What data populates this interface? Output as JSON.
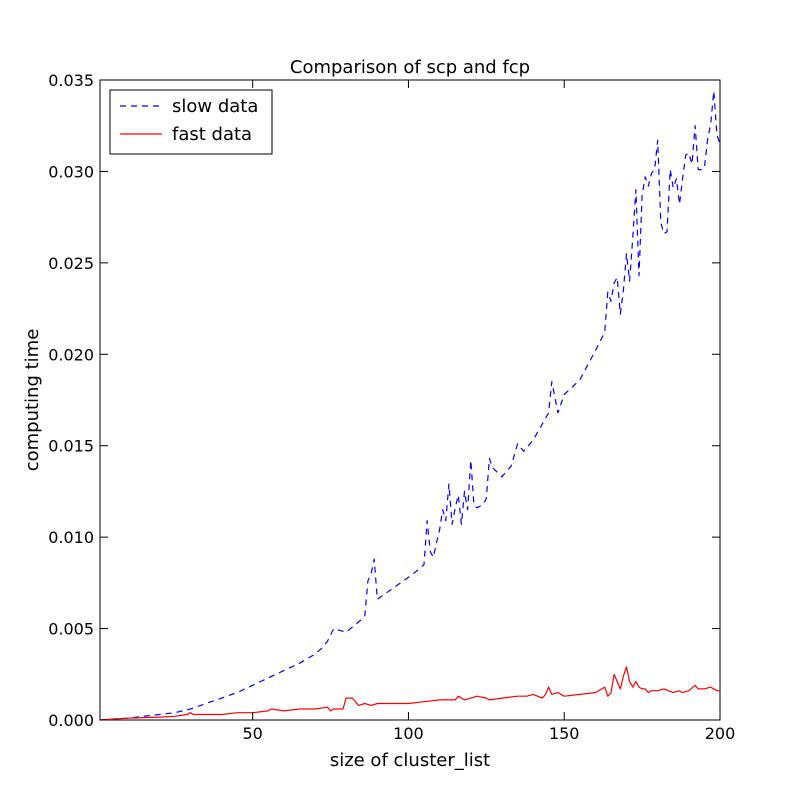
{
  "chart_data": {
    "type": "line",
    "title": "Comparison of scp and fcp",
    "xlabel": "size of cluster_list",
    "ylabel": "computing time",
    "xlim": [
      1,
      200
    ],
    "ylim": [
      0,
      0.035
    ],
    "xticks": [
      50,
      100,
      150,
      200
    ],
    "xtick_labels": [
      "50",
      "100",
      "150",
      "200"
    ],
    "yticks": [
      0,
      0.005,
      0.01,
      0.015,
      0.02,
      0.025,
      0.03,
      0.035
    ],
    "ytick_labels": [
      "0.000",
      "0.005",
      "0.010",
      "0.015",
      "0.020",
      "0.025",
      "0.030",
      "0.035"
    ],
    "grid": false,
    "legend": {
      "position": "top-left"
    },
    "series": [
      {
        "name": "slow data",
        "color": "#0000ff",
        "style": "dashed",
        "x": [
          1,
          5,
          10,
          15,
          20,
          25,
          30,
          35,
          40,
          45,
          50,
          55,
          60,
          65,
          70,
          72,
          74,
          76,
          80,
          85,
          86,
          87,
          88,
          89,
          90,
          95,
          100,
          103,
          105,
          106,
          107,
          108,
          109,
          110,
          111,
          112,
          113,
          114,
          115,
          116,
          117,
          118,
          119,
          120,
          121,
          122,
          123,
          124,
          125,
          126,
          127,
          130,
          133,
          135,
          137,
          140,
          143,
          145,
          146,
          148,
          150,
          155,
          160,
          163,
          164,
          165,
          166,
          167,
          168,
          169,
          170,
          171,
          172,
          173,
          174,
          175,
          176,
          177,
          178,
          179,
          180,
          181,
          182,
          183,
          184,
          185,
          186,
          187,
          188,
          189,
          190,
          191,
          192,
          193,
          194,
          195,
          196,
          197,
          198,
          199,
          200
        ],
        "values": [
          0.0,
          5e-05,
          0.0001,
          0.0002,
          0.0003,
          0.0004,
          0.0006,
          0.0009,
          0.0012,
          0.0015,
          0.0019,
          0.0023,
          0.0027,
          0.0031,
          0.0036,
          0.0039,
          0.0043,
          0.005,
          0.0048,
          0.0055,
          0.0057,
          0.0076,
          0.008,
          0.0088,
          0.0066,
          0.0072,
          0.0078,
          0.0082,
          0.0085,
          0.0109,
          0.0092,
          0.0089,
          0.0097,
          0.0104,
          0.0115,
          0.0109,
          0.0129,
          0.0107,
          0.0116,
          0.0123,
          0.0107,
          0.0125,
          0.0115,
          0.0142,
          0.0118,
          0.0116,
          0.0117,
          0.0118,
          0.0121,
          0.0143,
          0.0138,
          0.0133,
          0.0139,
          0.0151,
          0.0147,
          0.0153,
          0.0162,
          0.0168,
          0.0185,
          0.0168,
          0.0178,
          0.0186,
          0.0202,
          0.0212,
          0.0234,
          0.0229,
          0.0239,
          0.0242,
          0.0222,
          0.0235,
          0.0255,
          0.024,
          0.0264,
          0.029,
          0.0243,
          0.0287,
          0.0297,
          0.0292,
          0.0299,
          0.0301,
          0.0317,
          0.0272,
          0.0266,
          0.0267,
          0.0301,
          0.0291,
          0.0296,
          0.0282,
          0.0296,
          0.0309,
          0.031,
          0.0304,
          0.0325,
          0.0301,
          0.0301,
          0.0302,
          0.0317,
          0.0326,
          0.0344,
          0.032,
          0.0315
        ]
      },
      {
        "name": "fast data",
        "color": "#ff0000",
        "style": "solid",
        "x": [
          1,
          5,
          10,
          15,
          20,
          25,
          29,
          30,
          31,
          32,
          35,
          40,
          45,
          50,
          55,
          56,
          60,
          65,
          70,
          74,
          75,
          76,
          79,
          80,
          82,
          84,
          86,
          88,
          90,
          95,
          100,
          105,
          110,
          112,
          115,
          116,
          118,
          120,
          122,
          125,
          126,
          130,
          135,
          138,
          140,
          143,
          144,
          145,
          146,
          148,
          150,
          155,
          160,
          163,
          164,
          165,
          166,
          167,
          168,
          169,
          170,
          171,
          172,
          173,
          174,
          175,
          176,
          177,
          178,
          180,
          182,
          185,
          187,
          188,
          190,
          192,
          193,
          195,
          197,
          199,
          200
        ],
        "values": [
          0.0,
          5e-05,
          0.0001,
          0.00013,
          0.00016,
          0.0002,
          0.0003,
          0.0004,
          0.0003,
          0.0003,
          0.0003,
          0.0003,
          0.0004,
          0.0004,
          0.0005,
          0.0006,
          0.0005,
          0.0006,
          0.0006,
          0.0007,
          0.0005,
          0.0006,
          0.0006,
          0.0012,
          0.0012,
          0.0008,
          0.0009,
          0.0008,
          0.0009,
          0.0009,
          0.0009,
          0.001,
          0.0011,
          0.0011,
          0.0011,
          0.0013,
          0.0011,
          0.0012,
          0.0013,
          0.0012,
          0.0011,
          0.0012,
          0.0013,
          0.0013,
          0.0014,
          0.0012,
          0.0014,
          0.0018,
          0.0014,
          0.0015,
          0.0013,
          0.0014,
          0.0015,
          0.0018,
          0.0013,
          0.0015,
          0.0025,
          0.0021,
          0.0017,
          0.0024,
          0.0029,
          0.0021,
          0.0018,
          0.0021,
          0.0018,
          0.0017,
          0.0017,
          0.0015,
          0.0016,
          0.0016,
          0.0017,
          0.0015,
          0.0016,
          0.0015,
          0.0016,
          0.0019,
          0.0017,
          0.0017,
          0.0018,
          0.0016,
          0.0016
        ]
      }
    ]
  }
}
